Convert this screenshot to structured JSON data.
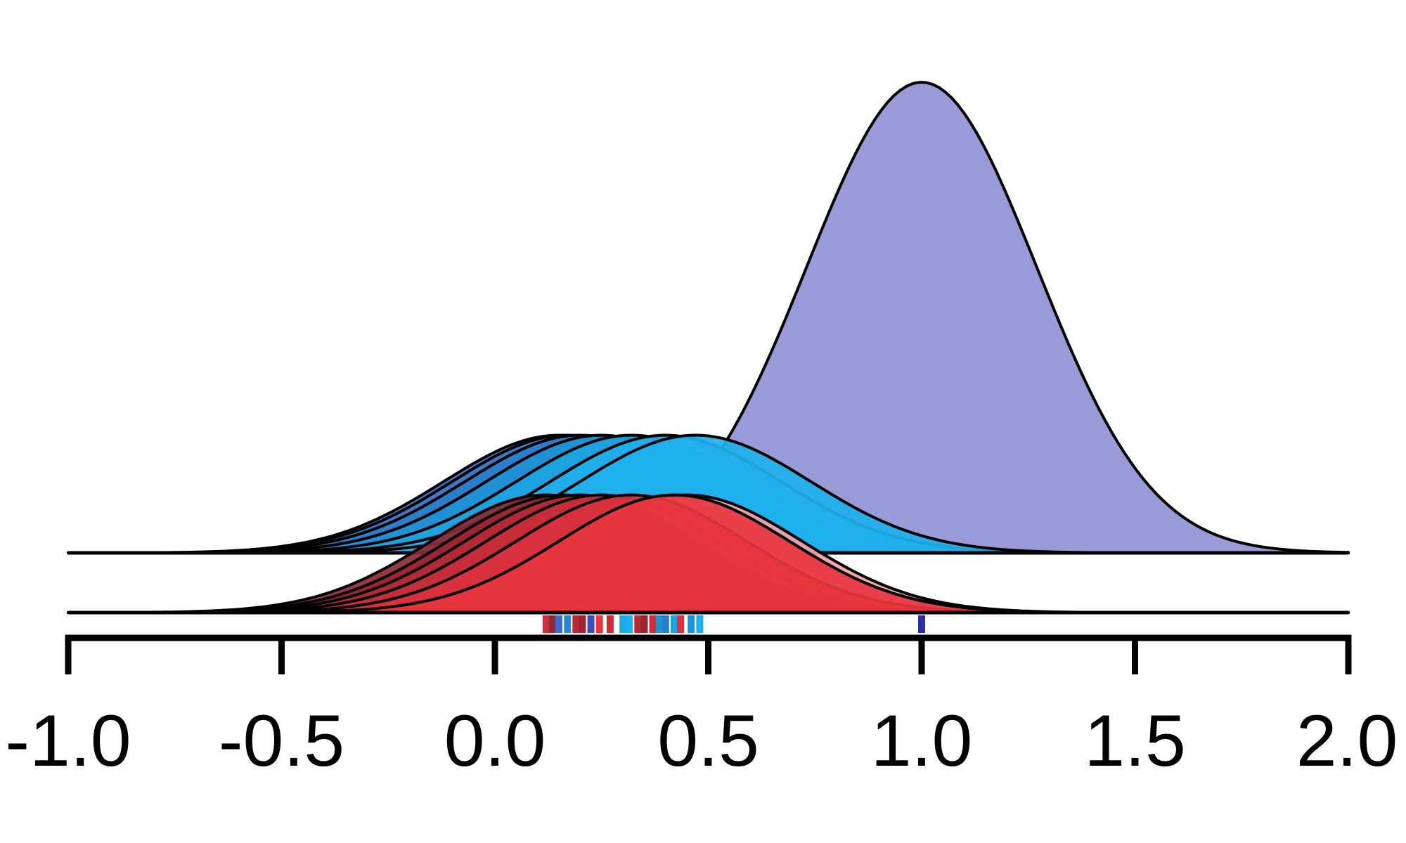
{
  "chart_data": {
    "type": "area",
    "title": "",
    "xlabel": "",
    "ylabel": "",
    "xlim": [
      -1.0,
      2.0
    ],
    "x_ticks": [
      -1.0,
      -0.5,
      0.0,
      0.5,
      1.0,
      1.5,
      2.0
    ],
    "x_tick_labels": [
      "-1.0",
      "-0.5",
      "0.0",
      "0.5",
      "1.0",
      "1.5",
      "2.0"
    ],
    "grid": false,
    "legend": "none",
    "baselines": [
      {
        "name": "upper",
        "level": 1
      },
      {
        "name": "lower",
        "level": 0
      }
    ],
    "densities": [
      {
        "row": "upper",
        "color": "#9092D6",
        "mean": 1.0,
        "sd": 0.27,
        "peak": 1.0
      },
      {
        "row": "upper",
        "color": "#3B6BC7",
        "mean": 0.15,
        "sd": 0.27,
        "peak": 0.25
      },
      {
        "row": "upper",
        "color": "#3F78C8",
        "mean": 0.17,
        "sd": 0.27,
        "peak": 0.25
      },
      {
        "row": "upper",
        "color": "#2A7FCB",
        "mean": 0.2,
        "sd": 0.27,
        "peak": 0.25
      },
      {
        "row": "upper",
        "color": "#1E92D5",
        "mean": 0.25,
        "sd": 0.27,
        "peak": 0.25
      },
      {
        "row": "upper",
        "color": "#1BA4DF",
        "mean": 0.32,
        "sd": 0.27,
        "peak": 0.25
      },
      {
        "row": "upper",
        "color": "#20AEEC",
        "mean": 0.4,
        "sd": 0.27,
        "peak": 0.25
      },
      {
        "row": "upper",
        "color": "#20B0EE",
        "mean": 0.47,
        "sd": 0.27,
        "peak": 0.25
      },
      {
        "row": "lower",
        "color": "#F4A0A8",
        "mean": 0.45,
        "sd": 0.27,
        "peak": 0.25
      },
      {
        "row": "lower",
        "color": "#8B2A35",
        "mean": 0.12,
        "sd": 0.27,
        "peak": 0.25
      },
      {
        "row": "lower",
        "color": "#9E2430",
        "mean": 0.16,
        "sd": 0.27,
        "peak": 0.25
      },
      {
        "row": "lower",
        "color": "#B52A35",
        "mean": 0.2,
        "sd": 0.27,
        "peak": 0.25
      },
      {
        "row": "lower",
        "color": "#C92E3A",
        "mean": 0.25,
        "sd": 0.27,
        "peak": 0.25
      },
      {
        "row": "lower",
        "color": "#D9313D",
        "mean": 0.32,
        "sd": 0.27,
        "peak": 0.25
      },
      {
        "row": "lower",
        "color": "#E8363F",
        "mean": 0.42,
        "sd": 0.27,
        "peak": 0.25
      }
    ],
    "rug": [
      {
        "x": 0.12,
        "color": "#C8323E"
      },
      {
        "x": 0.135,
        "color": "#8E2A36"
      },
      {
        "x": 0.15,
        "color": "#3D6BC6"
      },
      {
        "x": 0.17,
        "color": "#2A88D2"
      },
      {
        "x": 0.19,
        "color": "#B52A35"
      },
      {
        "x": 0.205,
        "color": "#9E2430"
      },
      {
        "x": 0.225,
        "color": "#3B4FB5"
      },
      {
        "x": 0.245,
        "color": "#E8363F"
      },
      {
        "x": 0.27,
        "color": "#C92E3A"
      },
      {
        "x": 0.3,
        "color": "#1EA8E6"
      },
      {
        "x": 0.315,
        "color": "#20B0EE"
      },
      {
        "x": 0.335,
        "color": "#B52A35"
      },
      {
        "x": 0.35,
        "color": "#9E2430"
      },
      {
        "x": 0.37,
        "color": "#C92E3A"
      },
      {
        "x": 0.385,
        "color": "#1E92D5"
      },
      {
        "x": 0.4,
        "color": "#2A7FCB"
      },
      {
        "x": 0.42,
        "color": "#1BA4DF"
      },
      {
        "x": 0.435,
        "color": "#D9313D"
      },
      {
        "x": 0.46,
        "color": "#1E92D5"
      },
      {
        "x": 0.48,
        "color": "#20AEEC"
      },
      {
        "x": 1.0,
        "color": "#2A2FA8"
      }
    ]
  }
}
